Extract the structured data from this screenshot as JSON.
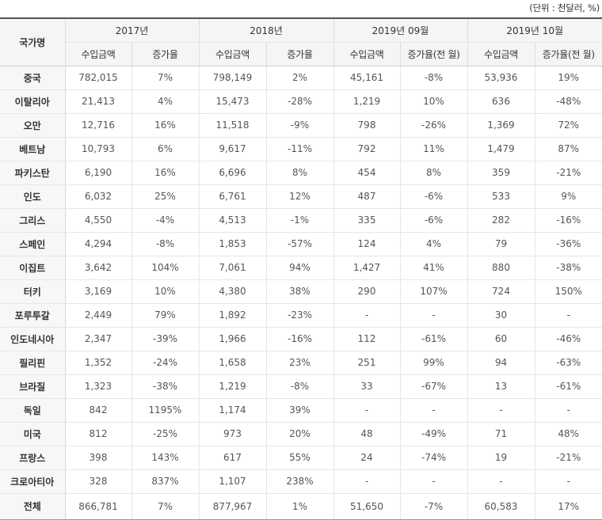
{
  "unit_note": "(단위 : 천달러, %)",
  "header": {
    "country": "국가명",
    "periods": [
      "2017년",
      "2018년",
      "2019년 09월",
      "2019년 10월"
    ],
    "subheaders": [
      "수입금액",
      "증가율",
      "수입금액",
      "증가율",
      "수입금액",
      "증가율(전 월)",
      "수입금액",
      "증가율(전 월)"
    ]
  },
  "rows": [
    {
      "country": "중국",
      "values": [
        "782,015",
        "7%",
        "798,149",
        "2%",
        "45,161",
        "-8%",
        "53,936",
        "19%"
      ]
    },
    {
      "country": "이탈리아",
      "values": [
        "21,413",
        "4%",
        "15,473",
        "-28%",
        "1,219",
        "10%",
        "636",
        "-48%"
      ]
    },
    {
      "country": "오만",
      "values": [
        "12,716",
        "16%",
        "11,518",
        "-9%",
        "798",
        "-26%",
        "1,369",
        "72%"
      ]
    },
    {
      "country": "베트남",
      "values": [
        "10,793",
        "6%",
        "9,617",
        "-11%",
        "792",
        "11%",
        "1,479",
        "87%"
      ]
    },
    {
      "country": "파키스탄",
      "values": [
        "6,190",
        "16%",
        "6,696",
        "8%",
        "454",
        "8%",
        "359",
        "-21%"
      ]
    },
    {
      "country": "인도",
      "values": [
        "6,032",
        "25%",
        "6,761",
        "12%",
        "487",
        "-6%",
        "533",
        "9%"
      ]
    },
    {
      "country": "그리스",
      "values": [
        "4,550",
        "-4%",
        "4,513",
        "-1%",
        "335",
        "-6%",
        "282",
        "-16%"
      ]
    },
    {
      "country": "스페인",
      "values": [
        "4,294",
        "-8%",
        "1,853",
        "-57%",
        "124",
        "4%",
        "79",
        "-36%"
      ]
    },
    {
      "country": "이집트",
      "values": [
        "3,642",
        "104%",
        "7,061",
        "94%",
        "1,427",
        "41%",
        "880",
        "-38%"
      ]
    },
    {
      "country": "터키",
      "values": [
        "3,169",
        "10%",
        "4,380",
        "38%",
        "290",
        "107%",
        "724",
        "150%"
      ]
    },
    {
      "country": "포루투갈",
      "values": [
        "2,449",
        "79%",
        "1,892",
        "-23%",
        "-",
        "-",
        "30",
        "-"
      ]
    },
    {
      "country": "인도네시아",
      "values": [
        "2,347",
        "-39%",
        "1,966",
        "-16%",
        "112",
        "-61%",
        "60",
        "-46%"
      ]
    },
    {
      "country": "필리핀",
      "values": [
        "1,352",
        "-24%",
        "1,658",
        "23%",
        "251",
        "99%",
        "94",
        "-63%"
      ]
    },
    {
      "country": "브라질",
      "values": [
        "1,323",
        "-38%",
        "1,219",
        "-8%",
        "33",
        "-67%",
        "13",
        "-61%"
      ]
    },
    {
      "country": "독일",
      "values": [
        "842",
        "1195%",
        "1,174",
        "39%",
        "-",
        "-",
        "-",
        "-"
      ]
    },
    {
      "country": "미국",
      "values": [
        "812",
        "-25%",
        "973",
        "20%",
        "48",
        "-49%",
        "71",
        "48%"
      ]
    },
    {
      "country": "프랑스",
      "values": [
        "398",
        "143%",
        "617",
        "55%",
        "24",
        "-74%",
        "19",
        "-21%"
      ]
    },
    {
      "country": "크로아티아",
      "values": [
        "328",
        "837%",
        "1,107",
        "238%",
        "-",
        "-",
        "-",
        "-"
      ]
    }
  ],
  "total": {
    "country": "전체",
    "values": [
      "866,781",
      "7%",
      "877,967",
      "1%",
      "51,650",
      "-7%",
      "60,583",
      "17%"
    ]
  }
}
